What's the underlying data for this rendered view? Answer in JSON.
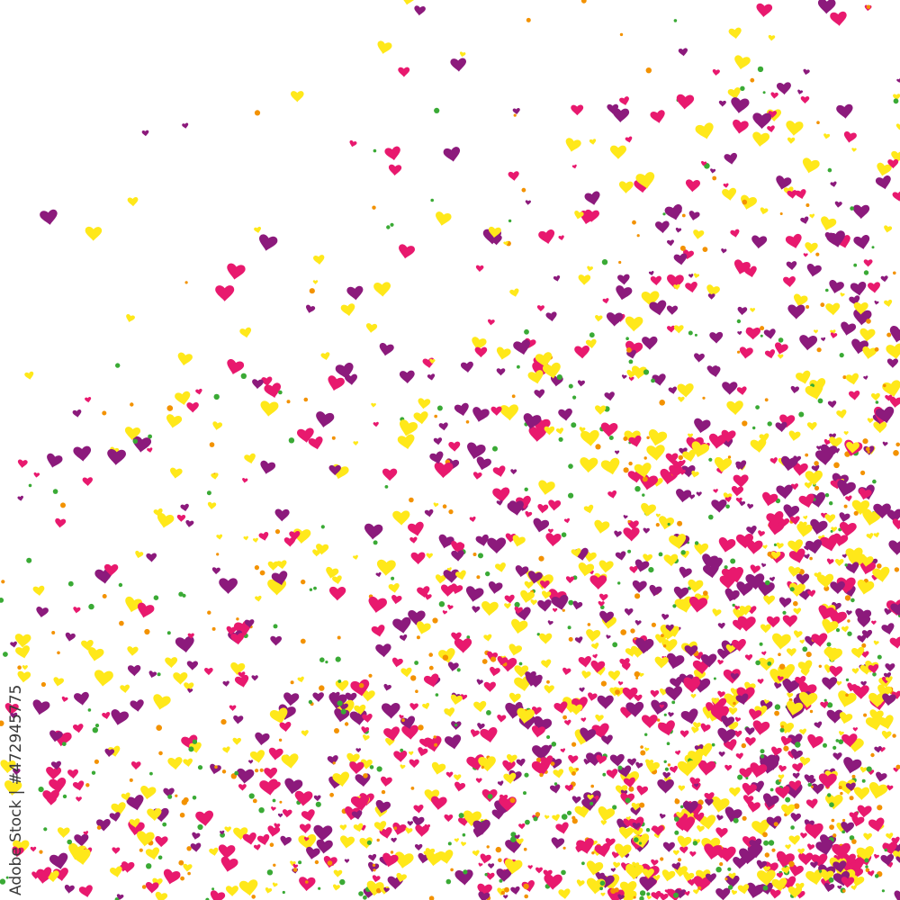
{
  "watermark": {
    "text": "Adobe Stock | #472945775"
  },
  "palette": {
    "pink": "#e8196e",
    "purple": "#8c1a7c",
    "yellow": "#ffe81a",
    "green": "#3aaa35",
    "orange": "#f39200"
  },
  "shapes": [
    "heart-icon",
    "dot"
  ]
}
